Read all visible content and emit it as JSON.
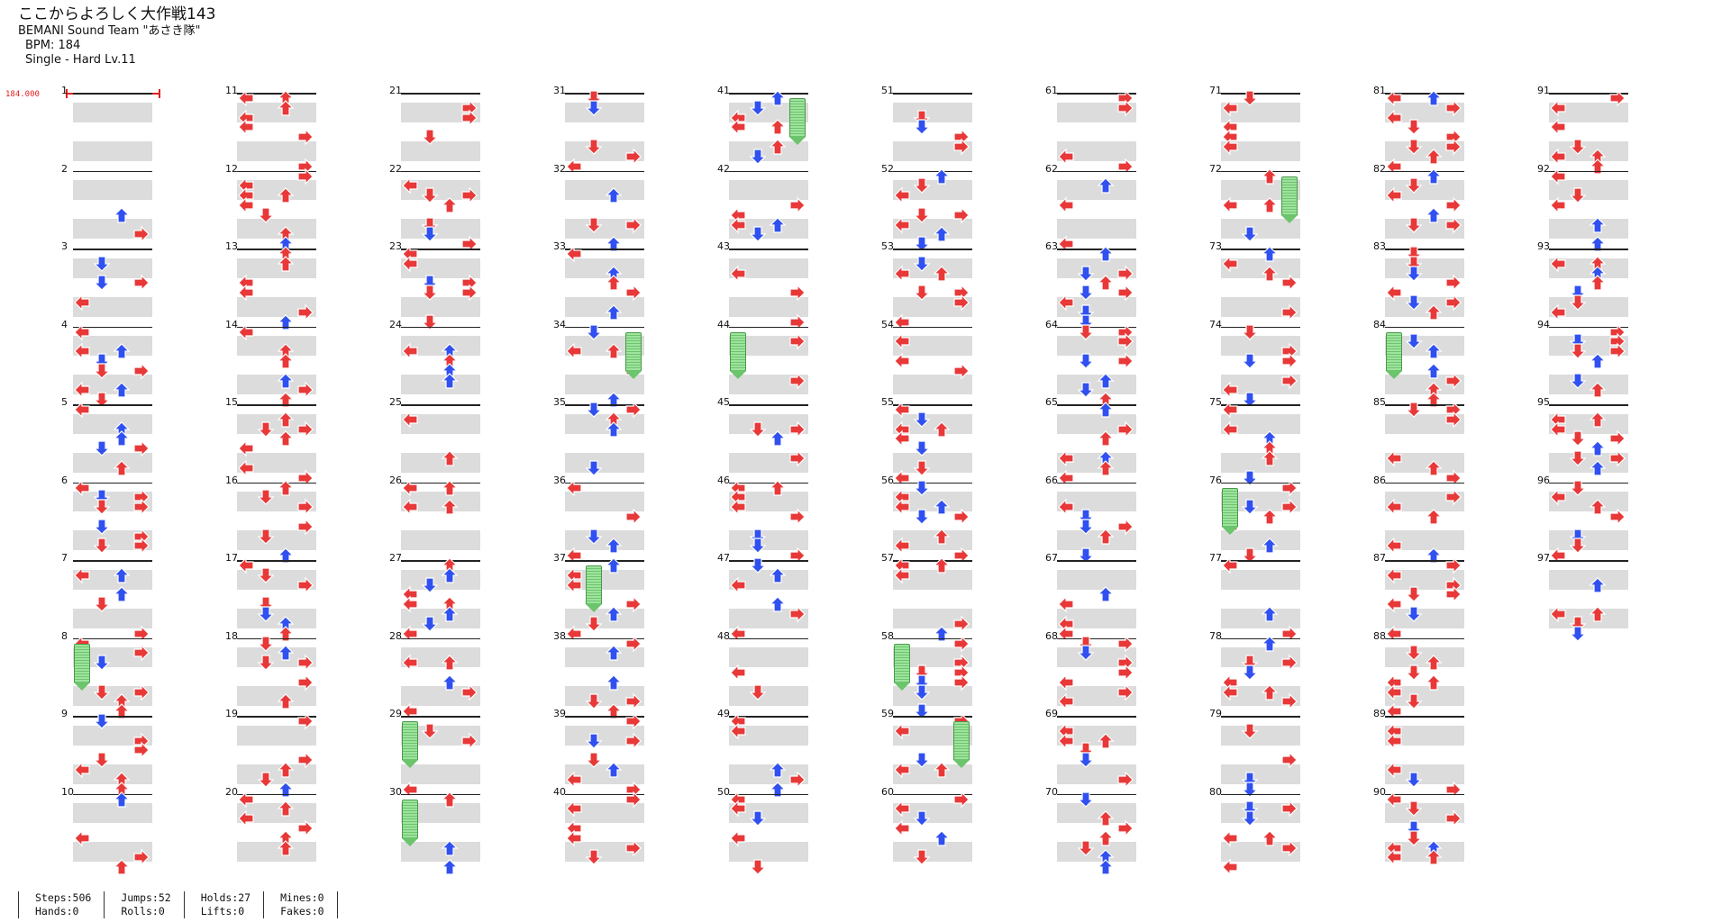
{
  "header": {
    "title": "ここからよろしく大作戦143",
    "artist": "BEMANI Sound Team \"あさき隊\"",
    "bpm": "BPM: 184",
    "difficulty": "Single - Hard  Lv.11"
  },
  "bpm_marker": "184.000",
  "colors": {
    "left_right": "#e83838",
    "up_down": "#3050f0",
    "hold": "#7ccf7c",
    "band": "#dcdcdc"
  },
  "measures": [
    "1",
    "2",
    "3",
    "4",
    "5",
    "6",
    "7",
    "8",
    "9",
    "10",
    "11",
    "12",
    "13",
    "14",
    "15",
    "16",
    "17",
    "18",
    "19",
    "20",
    "21",
    "22",
    "23",
    "24",
    "25",
    "26",
    "27",
    "28",
    "29",
    "30",
    "31",
    "32",
    "33",
    "34",
    "35",
    "36",
    "37",
    "38",
    "39",
    "40",
    "41",
    "42",
    "43",
    "44",
    "45",
    "46",
    "47",
    "48",
    "49",
    "50",
    "51",
    "52",
    "53",
    "54",
    "55",
    "56",
    "57",
    "58",
    "59",
    "60",
    "61",
    "62",
    "63",
    "64",
    "65",
    "66",
    "67",
    "68",
    "69",
    "70",
    "71",
    "72",
    "73",
    "74",
    "75",
    "76",
    "77",
    "78",
    "79",
    "80",
    "81",
    "82",
    "83",
    "84",
    "85",
    "86",
    "87",
    "88",
    "89",
    "90",
    "91",
    "92",
    "93",
    "94",
    "95",
    "96",
    "97"
  ],
  "stats": {
    "steps": "Steps:506",
    "hands": "Hands:0",
    "jumps": "Jumps:52",
    "rolls": "Rolls:0",
    "holds": "Holds:27",
    "lifts": "Lifts:0",
    "mines": "Mines:0",
    "fakes": "Fakes:0"
  }
}
